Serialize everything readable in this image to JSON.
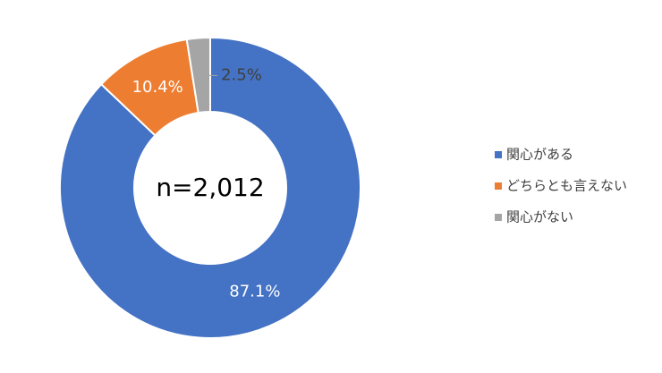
{
  "chart_data": {
    "type": "pie",
    "categories": [
      "関心がある",
      "どちらとも言えない",
      "関心がない"
    ],
    "values": [
      87.1,
      10.4,
      2.5
    ],
    "value_labels": [
      "87.1%",
      "10.4%",
      "2.5%"
    ],
    "colors": [
      "#4472c4",
      "#ed7d31",
      "#a5a5a5"
    ],
    "annotation": "n=2,012",
    "legend": "right"
  }
}
